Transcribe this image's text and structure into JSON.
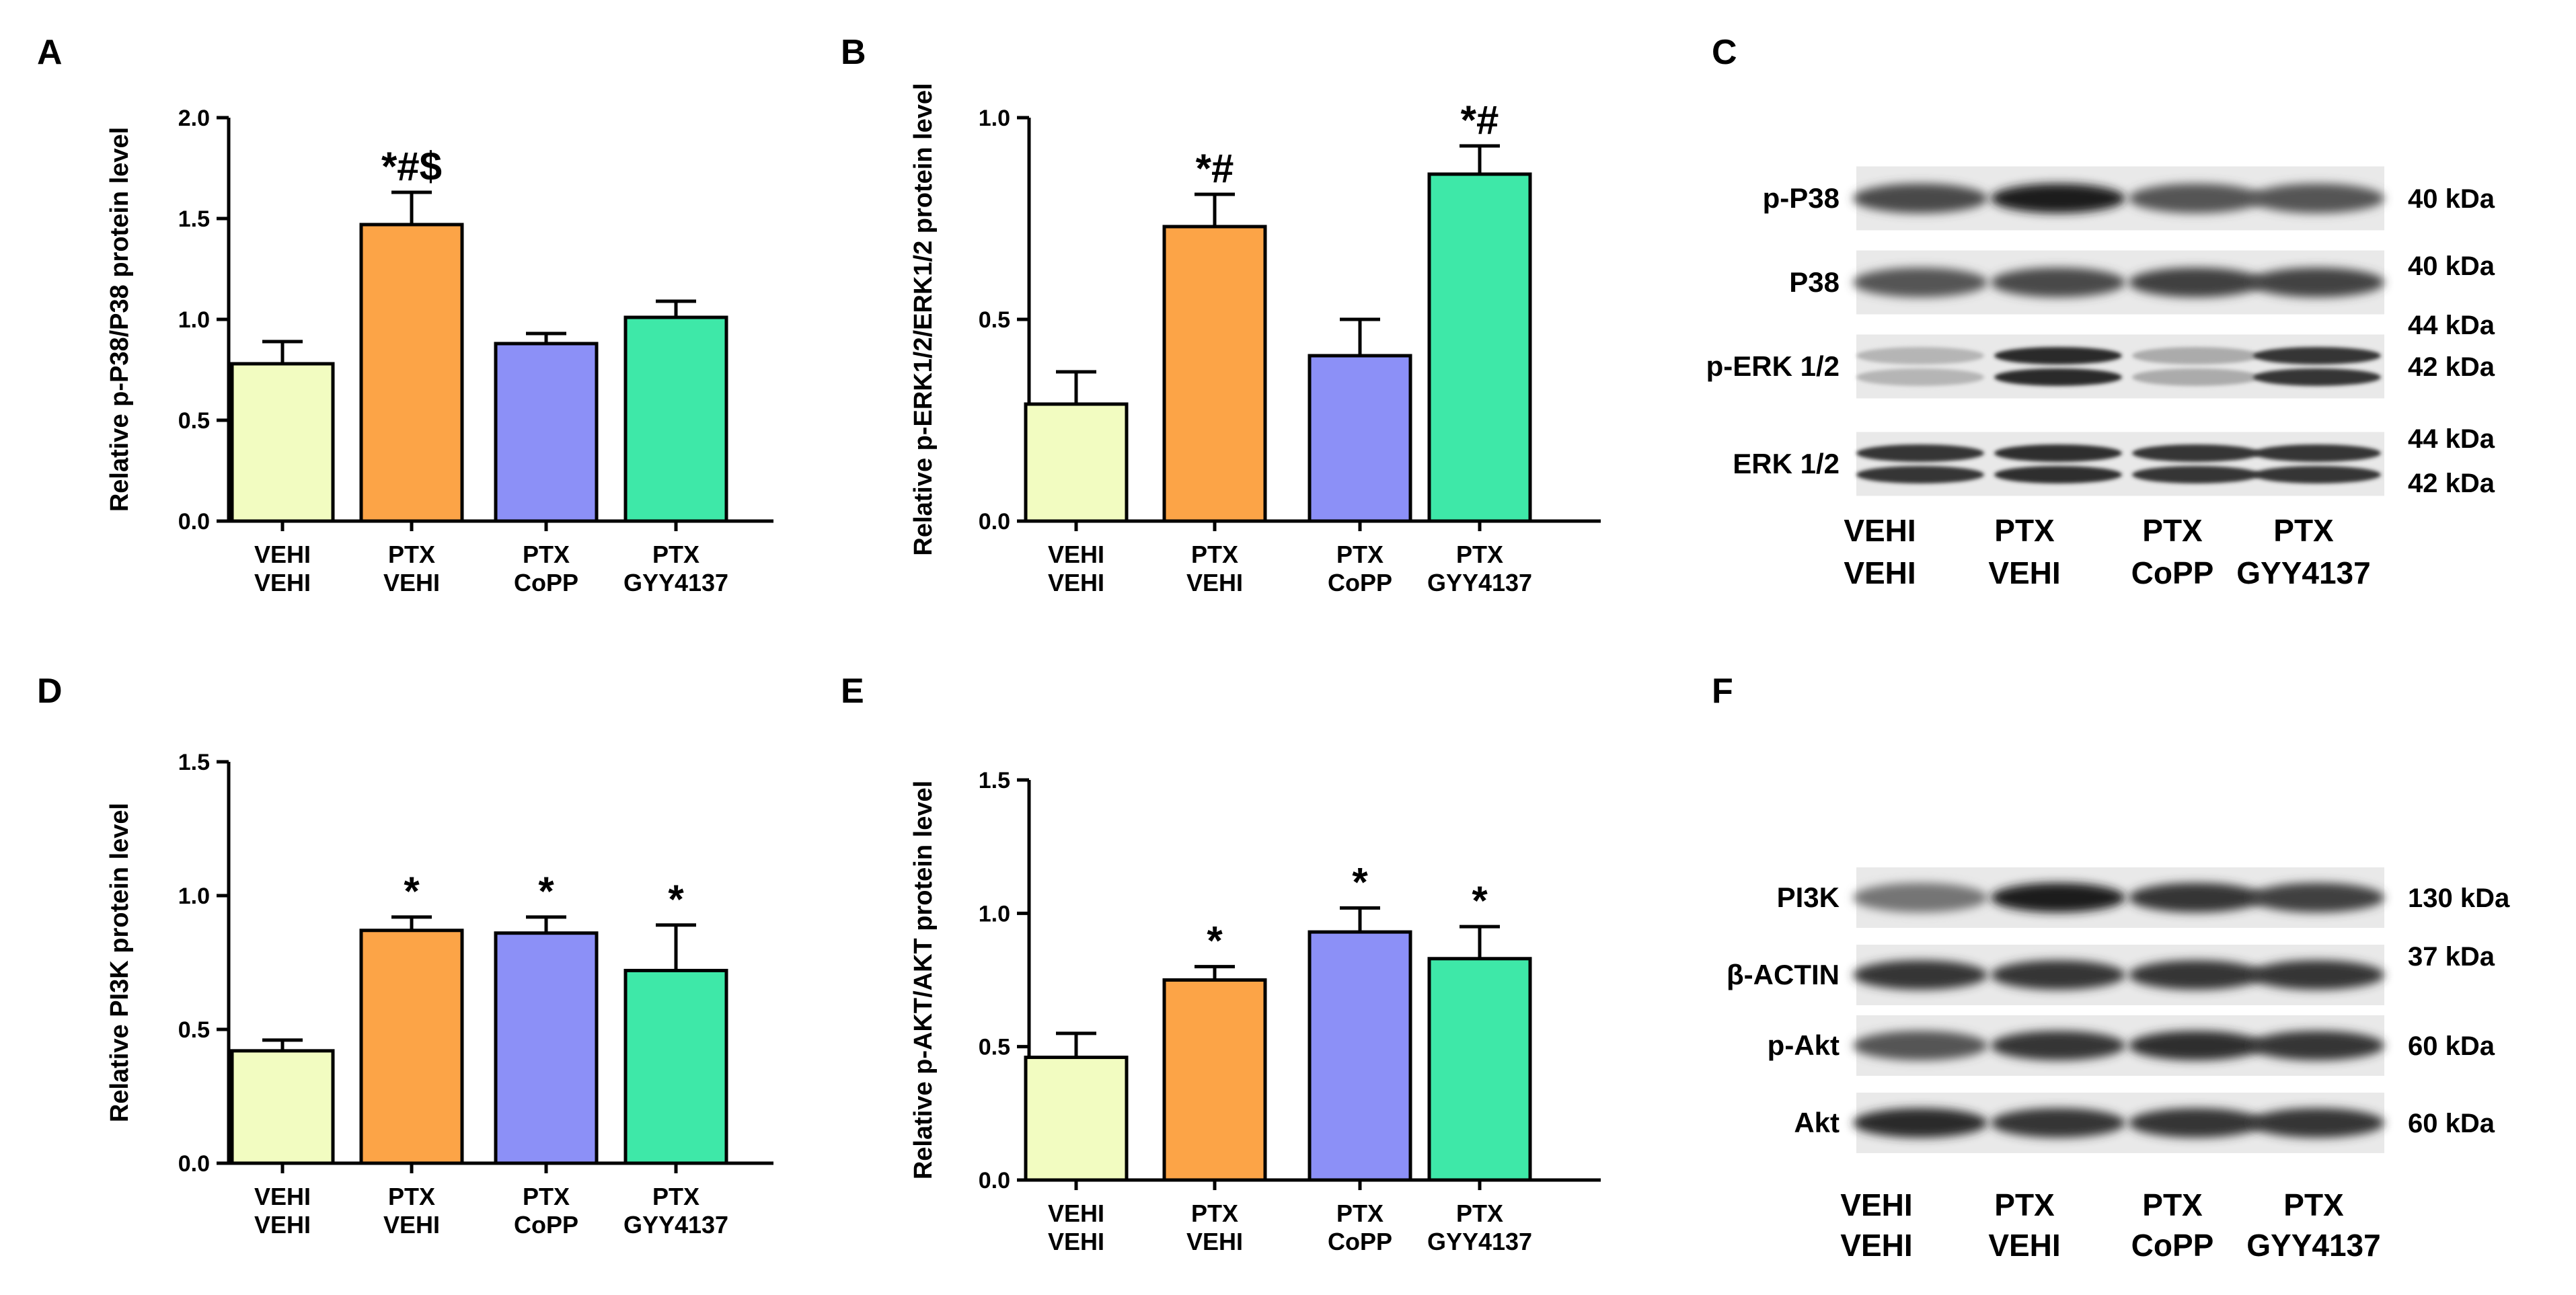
{
  "chart_data": [
    {
      "panel": "A",
      "type": "bar",
      "ylabel": "Relative p-P38/P38 protein level",
      "ylim": [
        0,
        2.0
      ],
      "yticks": [
        "0.0",
        "0.5",
        "1.0",
        "1.5",
        "2.0"
      ],
      "categories": [
        [
          "VEHI",
          "VEHI"
        ],
        [
          "PTX",
          "VEHI"
        ],
        [
          "PTX",
          "CoPP"
        ],
        [
          "PTX",
          "GYY4137"
        ]
      ],
      "values": [
        0.78,
        1.47,
        0.88,
        1.01
      ],
      "errors": [
        0.11,
        0.16,
        0.05,
        0.08
      ],
      "significance": [
        "",
        "*#$",
        "",
        ""
      ]
    },
    {
      "panel": "B",
      "type": "bar",
      "ylabel": "Relative p-ERK1/2/ERK1/2 protein level",
      "ylim": [
        0,
        1.0
      ],
      "yticks": [
        "0.0",
        "0.5",
        "1.0"
      ],
      "categories": [
        [
          "VEHI",
          "VEHI"
        ],
        [
          "PTX",
          "VEHI"
        ],
        [
          "PTX",
          "CoPP"
        ],
        [
          "PTX",
          "GYY4137"
        ]
      ],
      "values": [
        0.29,
        0.73,
        0.41,
        0.86
      ],
      "errors": [
        0.08,
        0.08,
        0.09,
        0.07
      ],
      "significance": [
        "",
        "*#",
        "",
        "*#"
      ]
    },
    {
      "panel": "D",
      "type": "bar",
      "ylabel": "Relative PI3K protein level",
      "ylim": [
        0,
        1.5
      ],
      "yticks": [
        "0.0",
        "0.5",
        "1.0",
        "1.5"
      ],
      "categories": [
        [
          "VEHI",
          "VEHI"
        ],
        [
          "PTX",
          "VEHI"
        ],
        [
          "PTX",
          "CoPP"
        ],
        [
          "PTX",
          "GYY4137"
        ]
      ],
      "values": [
        0.42,
        0.87,
        0.86,
        0.72
      ],
      "errors": [
        0.04,
        0.05,
        0.06,
        0.17
      ],
      "significance": [
        "",
        "*",
        "*",
        "*"
      ]
    },
    {
      "panel": "E",
      "type": "bar",
      "ylabel": "Relative p-AKT/AKT protein level",
      "ylim": [
        0,
        1.5
      ],
      "yticks": [
        "0.0",
        "0.5",
        "1.0",
        "1.5"
      ],
      "categories": [
        [
          "VEHI",
          "VEHI"
        ],
        [
          "PTX",
          "VEHI"
        ],
        [
          "PTX",
          "CoPP"
        ],
        [
          "PTX",
          "GYY4137"
        ]
      ],
      "values": [
        0.46,
        0.75,
        0.93,
        0.83
      ],
      "errors": [
        0.09,
        0.05,
        0.09,
        0.12
      ],
      "significance": [
        "",
        "*",
        "*",
        "*"
      ]
    }
  ],
  "bar_colors": [
    "#f2fcc1",
    "#fca447",
    "#8c90f7",
    "#3ee8a8"
  ],
  "blots": [
    {
      "panel": "C",
      "rows": [
        {
          "label": "p-P38",
          "kda": [
            "40 kDa"
          ],
          "intensity": [
            0.75,
            0.95,
            0.7,
            0.7
          ],
          "double": false
        },
        {
          "label": "P38",
          "kda": [
            "40 kDa"
          ],
          "intensity": [
            0.7,
            0.75,
            0.8,
            0.78
          ],
          "double": false
        },
        {
          "label": "p-ERK 1/2",
          "kda": [
            "44 kDa",
            "42 kDa"
          ],
          "intensity": [
            0.25,
            0.9,
            0.3,
            0.85
          ],
          "double": true
        },
        {
          "label": "ERK 1/2",
          "kda": [
            "44 kDa",
            "42 kDa"
          ],
          "intensity": [
            0.85,
            0.88,
            0.85,
            0.85
          ],
          "double": true
        }
      ],
      "lanes": [
        [
          "VEHI",
          "VEHI"
        ],
        [
          "PTX",
          "VEHI"
        ],
        [
          "PTX",
          "CoPP"
        ],
        [
          "PTX",
          "GYY4137"
        ]
      ]
    },
    {
      "panel": "F",
      "rows": [
        {
          "label": "PI3K",
          "kda": [
            "130 kDa"
          ],
          "intensity": [
            0.55,
            0.95,
            0.85,
            0.8
          ],
          "double": false
        },
        {
          "label": "β-ACTIN",
          "kda": [
            "37 kDa"
          ],
          "intensity": [
            0.85,
            0.85,
            0.85,
            0.85
          ],
          "double": false
        },
        {
          "label": "p-Akt",
          "kda": [
            "60 kDa"
          ],
          "intensity": [
            0.7,
            0.85,
            0.88,
            0.85
          ],
          "double": false
        },
        {
          "label": "Akt",
          "kda": [
            "60 kDa"
          ],
          "intensity": [
            0.9,
            0.85,
            0.85,
            0.85
          ],
          "double": false
        }
      ],
      "lanes": [
        [
          "VEHI",
          "VEHI"
        ],
        [
          "PTX",
          "VEHI"
        ],
        [
          "PTX",
          "CoPP"
        ],
        [
          "PTX",
          "GYY4137"
        ]
      ]
    }
  ]
}
